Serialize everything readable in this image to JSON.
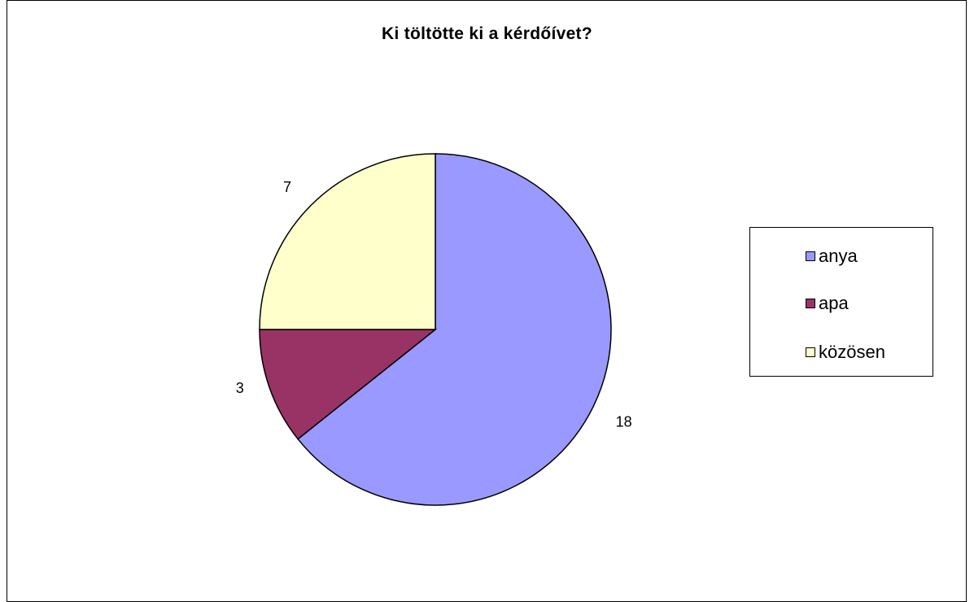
{
  "chart_data": {
    "type": "pie",
    "title": "Ki töltötte ki a kérdőívet?",
    "categories": [
      "anya",
      "apa",
      "közösen"
    ],
    "values": [
      18,
      3,
      7
    ],
    "colors": [
      "#9999FF",
      "#993366",
      "#FFFFCC"
    ],
    "data_labels": [
      "18",
      "3",
      "7"
    ],
    "legend_position": "right",
    "start_angle": "12 o'clock",
    "direction": "clockwise"
  }
}
